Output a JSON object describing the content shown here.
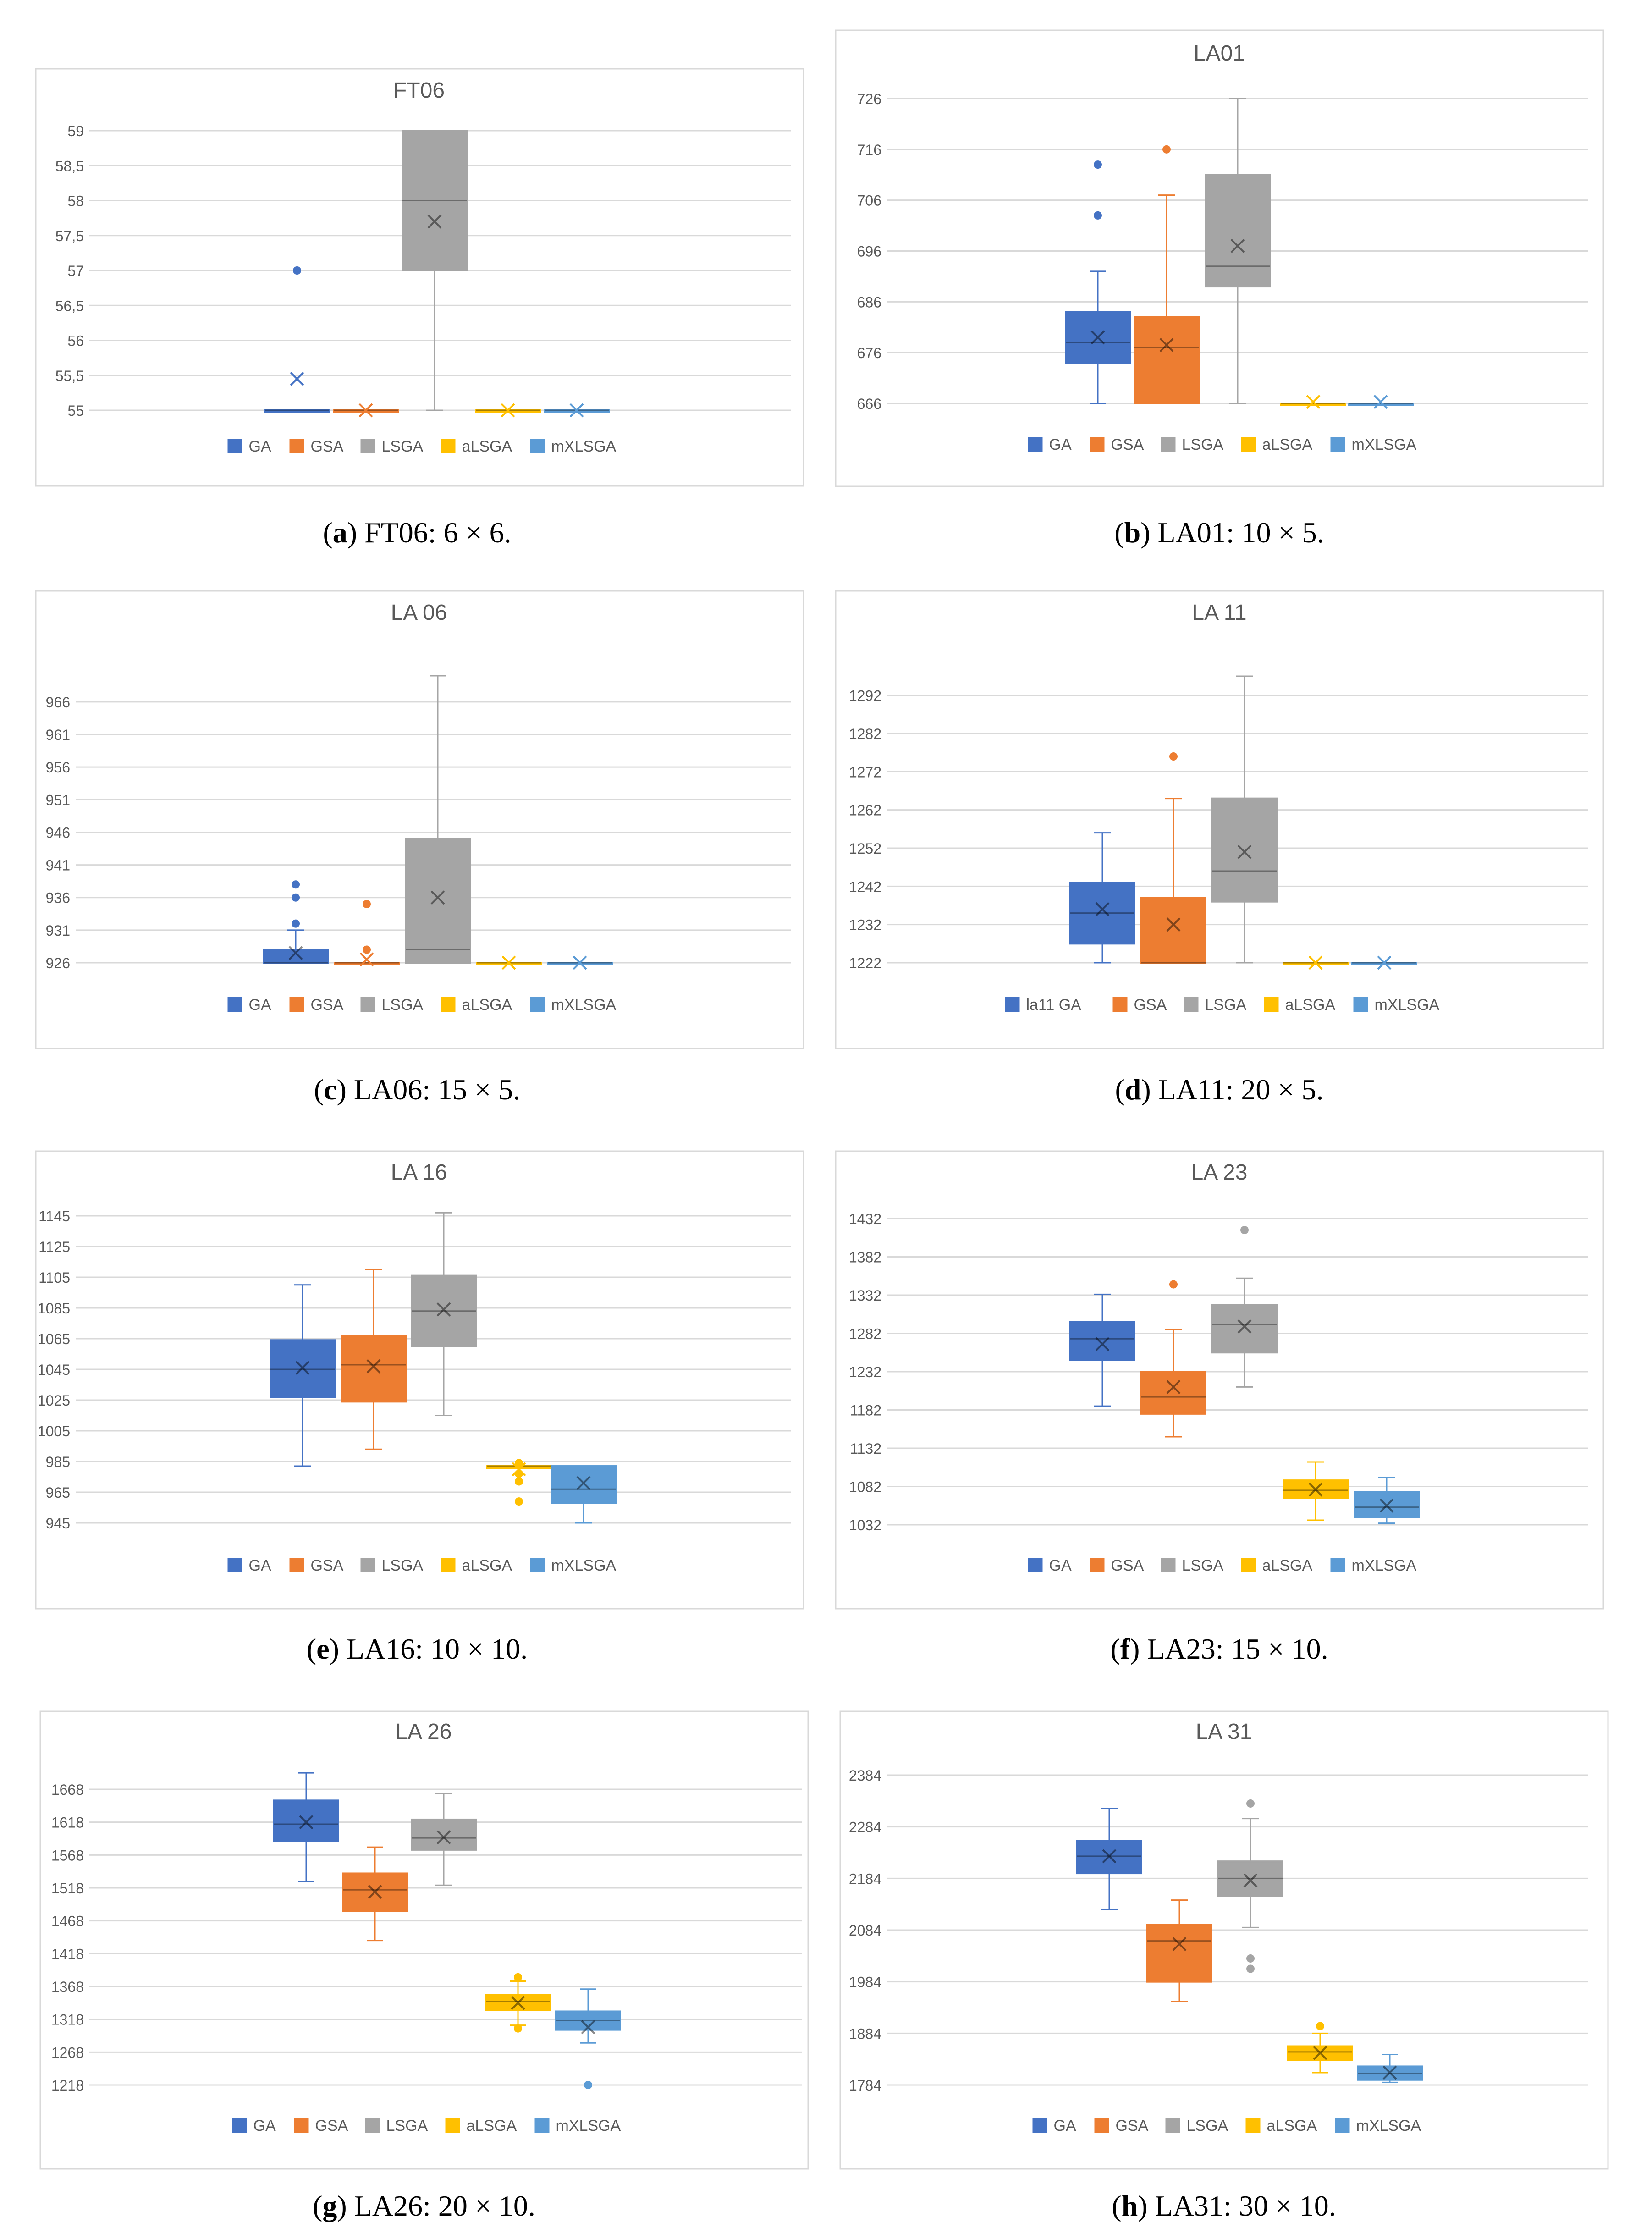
{
  "figure": {
    "colors": {
      "GA": "#4472c4",
      "GSA": "#ed7d31",
      "LSGA": "#a5a5a5",
      "aLSGA": "#ffc000",
      "mXLSGA": "#5b9bd5",
      "grid": "#d9d9d9",
      "text": "#595959",
      "frame": "#d9d9d9"
    }
  },
  "captions": [
    {
      "label": "a",
      "text": "FT06: 6 × 6."
    },
    {
      "label": "b",
      "text": "LA01: 10 × 5."
    },
    {
      "label": "c",
      "text": "LA06: 15 × 5."
    },
    {
      "label": "d",
      "text": "LA11: 20 × 5."
    },
    {
      "label": "e",
      "text": "LA16: 10 × 10."
    },
    {
      "label": "f",
      "text": "LA23: 15 × 10."
    },
    {
      "label": "g",
      "text": "LA26: 20 × 10."
    },
    {
      "label": "h",
      "text": "LA31: 30 × 10."
    }
  ],
  "chart_data": [
    {
      "type": "box",
      "title": "FT06",
      "yticks": [
        "55",
        "55,5",
        "56",
        "56,5",
        "57",
        "57,5",
        "58",
        "58,5",
        "59"
      ],
      "ylim": [
        55,
        59
      ],
      "legend": [
        "GA",
        "GSA",
        "LSGA",
        "aLSGA",
        "mXLSGA"
      ],
      "series": [
        {
          "name": "GA",
          "min": 55,
          "q1": 55,
          "median": 55,
          "q3": 55,
          "max": 55,
          "mean": 55.45,
          "outliers": [
            57
          ]
        },
        {
          "name": "GSA",
          "min": 55,
          "q1": 55,
          "median": 55,
          "q3": 55,
          "max": 55,
          "mean": 55,
          "outliers": []
        },
        {
          "name": "LSGA",
          "min": 55,
          "q1": 57,
          "median": 58,
          "q3": 59,
          "max": 59,
          "mean": 57.7,
          "outliers": []
        },
        {
          "name": "aLSGA",
          "min": 55,
          "q1": 55,
          "median": 55,
          "q3": 55,
          "max": 55,
          "mean": 55,
          "outliers": []
        },
        {
          "name": "mXLSGA",
          "min": 55,
          "q1": 55,
          "median": 55,
          "q3": 55,
          "max": 55,
          "mean": 55,
          "outliers": []
        }
      ]
    },
    {
      "type": "box",
      "title": "LA01",
      "yticks": [
        "666",
        "676",
        "686",
        "696",
        "706",
        "716",
        "726"
      ],
      "ylim": [
        666,
        726
      ],
      "legend": [
        "GA",
        "GSA",
        "LSGA",
        "aLSGA",
        "mXLSGA"
      ],
      "series": [
        {
          "name": "GA",
          "min": 666,
          "q1": 674,
          "median": 678,
          "q3": 684,
          "max": 692,
          "mean": 679,
          "outliers": [
            703,
            713
          ]
        },
        {
          "name": "GSA",
          "min": 666,
          "q1": 666,
          "median": 677,
          "q3": 683,
          "max": 707,
          "mean": 677.5,
          "outliers": [
            716
          ]
        },
        {
          "name": "LSGA",
          "min": 666,
          "q1": 689,
          "median": 693,
          "q3": 711,
          "max": 726,
          "mean": 697,
          "outliers": []
        },
        {
          "name": "aLSGA",
          "min": 666,
          "q1": 666,
          "median": 666,
          "q3": 666,
          "max": 666,
          "mean": 666.3,
          "outliers": []
        },
        {
          "name": "mXLSGA",
          "min": 666,
          "q1": 666,
          "median": 666,
          "q3": 666,
          "max": 666,
          "mean": 666.3,
          "outliers": []
        }
      ]
    },
    {
      "type": "box",
      "title": "LA 06",
      "yticks": [
        "926",
        "931",
        "936",
        "941",
        "946",
        "951",
        "956",
        "961",
        "966"
      ],
      "ylim": [
        926,
        970
      ],
      "legend": [
        "GA",
        "GSA",
        "LSGA",
        "aLSGA",
        "mXLSGA"
      ],
      "series": [
        {
          "name": "GA",
          "min": 926,
          "q1": 926,
          "median": 926,
          "q3": 928,
          "max": 931,
          "mean": 927.5,
          "outliers": [
            932,
            936,
            938
          ]
        },
        {
          "name": "GSA",
          "min": 926,
          "q1": 926,
          "median": 926,
          "q3": 926,
          "max": 926,
          "mean": 926.5,
          "outliers": [
            928,
            935
          ]
        },
        {
          "name": "LSGA",
          "min": 926,
          "q1": 926,
          "median": 928,
          "q3": 945,
          "max": 970,
          "mean": 936,
          "outliers": []
        },
        {
          "name": "aLSGA",
          "min": 926,
          "q1": 926,
          "median": 926,
          "q3": 926,
          "max": 926,
          "mean": 926,
          "outliers": []
        },
        {
          "name": "mXLSGA",
          "min": 926,
          "q1": 926,
          "median": 926,
          "q3": 926,
          "max": 926,
          "mean": 926,
          "outliers": []
        }
      ]
    },
    {
      "type": "box",
      "title": "LA 11",
      "yticks": [
        "1222",
        "1232",
        "1242",
        "1252",
        "1262",
        "1272",
        "1282",
        "1292"
      ],
      "ylim": [
        1222,
        1297
      ],
      "legend": [
        "la11 GA",
        "GSA",
        "LSGA",
        "aLSGA",
        "mXLSGA"
      ],
      "series": [
        {
          "name": "la11 GA",
          "min": 1222,
          "q1": 1227,
          "median": 1235,
          "q3": 1243,
          "max": 1256,
          "mean": 1236,
          "outliers": []
        },
        {
          "name": "GSA",
          "min": 1222,
          "q1": 1222,
          "median": 1222,
          "q3": 1239,
          "max": 1265,
          "mean": 1232,
          "outliers": [
            1276
          ]
        },
        {
          "name": "LSGA",
          "min": 1222,
          "q1": 1238,
          "median": 1246,
          "q3": 1265,
          "max": 1297,
          "mean": 1251,
          "outliers": []
        },
        {
          "name": "aLSGA",
          "min": 1222,
          "q1": 1222,
          "median": 1222,
          "q3": 1222,
          "max": 1222,
          "mean": 1222,
          "outliers": []
        },
        {
          "name": "mXLSGA",
          "min": 1222,
          "q1": 1222,
          "median": 1222,
          "q3": 1222,
          "max": 1222,
          "mean": 1222,
          "outliers": []
        }
      ]
    },
    {
      "type": "box",
      "title": "LA 16",
      "yticks": [
        "945",
        "965",
        "985",
        "1005",
        "1025",
        "1045",
        "1065",
        "1085",
        "1105",
        "1125",
        "1145"
      ],
      "ylim": [
        945,
        1145
      ],
      "legend": [
        "GA",
        "GSA",
        "LSGA",
        "aLSGA",
        "mXLSGA"
      ],
      "series": [
        {
          "name": "GA",
          "min": 982,
          "q1": 1027,
          "median": 1045,
          "q3": 1064,
          "max": 1100,
          "mean": 1046,
          "outliers": []
        },
        {
          "name": "GSA",
          "min": 993,
          "q1": 1024,
          "median": 1048,
          "q3": 1067,
          "max": 1110,
          "mean": 1047,
          "outliers": []
        },
        {
          "name": "LSGA",
          "min": 1015,
          "q1": 1060,
          "median": 1083,
          "q3": 1106,
          "max": 1147,
          "mean": 1084,
          "outliers": []
        },
        {
          "name": "aLSGA",
          "min": 982,
          "q1": 982,
          "median": 982,
          "q3": 982,
          "max": 982,
          "mean": 980,
          "outliers": [
            959,
            972,
            977,
            984
          ]
        },
        {
          "name": "mXLSGA",
          "min": 945,
          "q1": 958,
          "median": 967,
          "q3": 982,
          "max": 982,
          "mean": 971,
          "outliers": []
        }
      ]
    },
    {
      "type": "box",
      "title": "LA 23",
      "yticks": [
        "1032",
        "1082",
        "1132",
        "1182",
        "1232",
        "1282",
        "1332",
        "1382",
        "1432"
      ],
      "ylim": [
        1032,
        1432
      ],
      "legend": [
        "GA",
        "GSA",
        "LSGA",
        "aLSGA",
        "mXLSGA"
      ],
      "series": [
        {
          "name": "GA",
          "min": 1187,
          "q1": 1247,
          "median": 1275,
          "q3": 1297,
          "max": 1333,
          "mean": 1268,
          "outliers": []
        },
        {
          "name": "GSA",
          "min": 1147,
          "q1": 1177,
          "median": 1199,
          "q3": 1232,
          "max": 1287,
          "mean": 1212,
          "outliers": [
            1346
          ]
        },
        {
          "name": "LSGA",
          "min": 1212,
          "q1": 1257,
          "median": 1294,
          "q3": 1319,
          "max": 1354,
          "mean": 1291,
          "outliers": [
            1417
          ]
        },
        {
          "name": "aLSGA",
          "min": 1038,
          "q1": 1067,
          "median": 1077,
          "q3": 1090,
          "max": 1114,
          "mean": 1078,
          "outliers": []
        },
        {
          "name": "mXLSGA",
          "min": 1034,
          "q1": 1042,
          "median": 1055,
          "q3": 1075,
          "max": 1094,
          "mean": 1057,
          "outliers": []
        }
      ]
    },
    {
      "type": "box",
      "title": "LA 26",
      "yticks": [
        "1218",
        "1268",
        "1318",
        "1368",
        "1418",
        "1468",
        "1518",
        "1568",
        "1618",
        "1668"
      ],
      "ylim": [
        1218,
        1668
      ],
      "legend": [
        "GA",
        "GSA",
        "LSGA",
        "aLSGA",
        "mXLSGA"
      ],
      "series": [
        {
          "name": "GA",
          "min": 1528,
          "q1": 1589,
          "median": 1615,
          "q3": 1651,
          "max": 1693,
          "mean": 1618,
          "outliers": []
        },
        {
          "name": "GSA",
          "min": 1438,
          "q1": 1483,
          "median": 1515,
          "q3": 1540,
          "max": 1580,
          "mean": 1512,
          "outliers": []
        },
        {
          "name": "LSGA",
          "min": 1522,
          "q1": 1576,
          "median": 1594,
          "q3": 1622,
          "max": 1662,
          "mean": 1595,
          "outliers": []
        },
        {
          "name": "aLSGA",
          "min": 1309,
          "q1": 1332,
          "median": 1345,
          "q3": 1355,
          "max": 1376,
          "mean": 1343,
          "outliers": [
            1304,
            1382
          ]
        },
        {
          "name": "mXLSGA",
          "min": 1282,
          "q1": 1302,
          "median": 1316,
          "q3": 1330,
          "max": 1364,
          "mean": 1306,
          "outliers": [
            1218
          ]
        }
      ]
    },
    {
      "type": "box",
      "title": "LA 31",
      "yticks": [
        "1784",
        "1884",
        "1984",
        "2084",
        "2184",
        "2284",
        "2384"
      ],
      "ylim": [
        1784,
        2384
      ],
      "legend": [
        "GA",
        "GSA",
        "LSGA",
        "aLSGA",
        "mXLSGA"
      ],
      "series": [
        {
          "name": "GA",
          "min": 2124,
          "q1": 2194,
          "median": 2227,
          "q3": 2257,
          "max": 2319,
          "mean": 2227,
          "outliers": []
        },
        {
          "name": "GSA",
          "min": 1946,
          "q1": 1984,
          "median": 2063,
          "q3": 2094,
          "max": 2142,
          "mean": 2057,
          "outliers": []
        },
        {
          "name": "LSGA",
          "min": 2089,
          "q1": 2150,
          "median": 2184,
          "q3": 2217,
          "max": 2300,
          "mean": 2180,
          "outliers": [
            2009,
            2029,
            2329
          ]
        },
        {
          "name": "aLSGA",
          "min": 1808,
          "q1": 1832,
          "median": 1848,
          "q3": 1859,
          "max": 1884,
          "mean": 1846,
          "outliers": [
            1898
          ]
        },
        {
          "name": "mXLSGA",
          "min": 1789,
          "q1": 1794,
          "median": 1806,
          "q3": 1820,
          "max": 1843,
          "mean": 1808,
          "outliers": []
        }
      ]
    }
  ]
}
